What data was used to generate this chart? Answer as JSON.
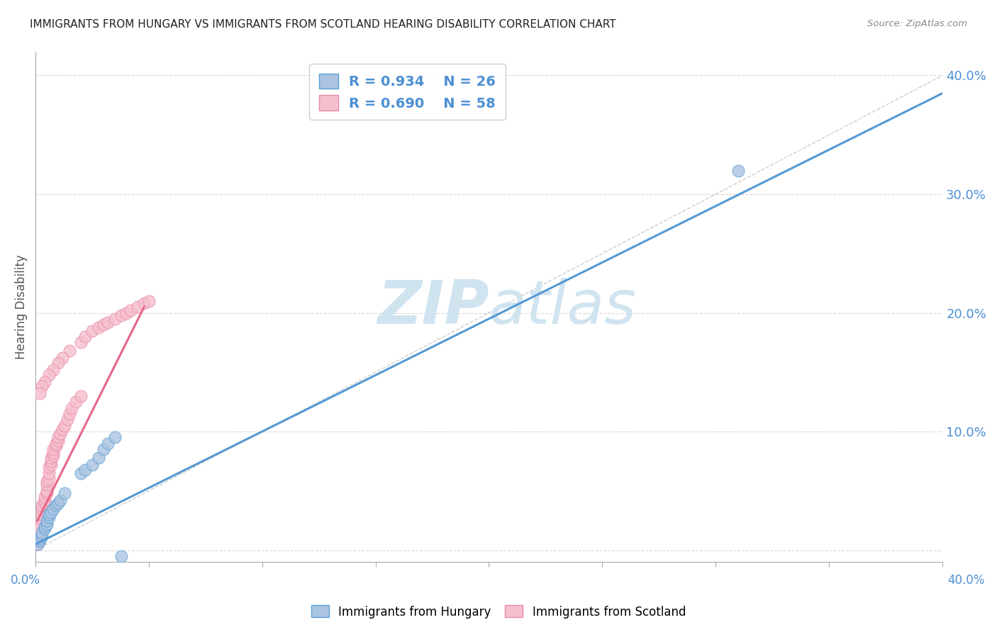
{
  "title": "IMMIGRANTS FROM HUNGARY VS IMMIGRANTS FROM SCOTLAND HEARING DISABILITY CORRELATION CHART",
  "source": "Source: ZipAtlas.com",
  "ylabel": "Hearing Disability",
  "xlim": [
    0.0,
    0.4
  ],
  "ylim": [
    -0.01,
    0.42
  ],
  "legend_R_hungary": "R = 0.934",
  "legend_N_hungary": "N = 26",
  "legend_R_scotland": "R = 0.690",
  "legend_N_scotland": "N = 58",
  "hungary_color": "#aac4e2",
  "hungary_edge": "#5a9fd4",
  "scotland_color": "#f5bfcc",
  "scotland_edge": "#e888a8",
  "hungary_line_color": "#5599d4",
  "scotland_line_color": "#e86688",
  "watermark_color": "#d0e4f0",
  "background_color": "#ffffff",
  "grid_color": "#cccccc",
  "hungary_x": [
    0.001,
    0.002,
    0.002,
    0.003,
    0.003,
    0.004,
    0.004,
    0.005,
    0.005,
    0.006,
    0.006,
    0.007,
    0.008,
    0.009,
    0.01,
    0.011,
    0.013,
    0.02,
    0.022,
    0.025,
    0.028,
    0.03,
    0.032,
    0.035,
    0.31,
    0.038
  ],
  "hungary_y": [
    0.005,
    0.008,
    0.01,
    0.012,
    0.015,
    0.018,
    0.02,
    0.022,
    0.025,
    0.028,
    0.03,
    0.032,
    0.035,
    0.038,
    0.04,
    0.042,
    0.048,
    0.065,
    0.068,
    0.072,
    0.078,
    0.085,
    0.09,
    0.095,
    0.32,
    -0.005
  ],
  "scotland_x": [
    0.001,
    0.001,
    0.002,
    0.002,
    0.002,
    0.003,
    0.003,
    0.003,
    0.003,
    0.004,
    0.004,
    0.004,
    0.005,
    0.005,
    0.005,
    0.005,
    0.006,
    0.006,
    0.006,
    0.007,
    0.007,
    0.007,
    0.008,
    0.008,
    0.008,
    0.009,
    0.009,
    0.01,
    0.01,
    0.011,
    0.012,
    0.013,
    0.014,
    0.015,
    0.016,
    0.018,
    0.02,
    0.02,
    0.022,
    0.025,
    0.028,
    0.03,
    0.032,
    0.035,
    0.038,
    0.04,
    0.042,
    0.045,
    0.048,
    0.05,
    0.015,
    0.012,
    0.01,
    0.008,
    0.006,
    0.004,
    0.003,
    0.002
  ],
  "scotland_y": [
    0.005,
    0.008,
    0.01,
    0.015,
    0.02,
    0.025,
    0.03,
    0.035,
    0.038,
    0.04,
    0.042,
    0.045,
    0.048,
    0.05,
    0.055,
    0.058,
    0.06,
    0.065,
    0.07,
    0.072,
    0.075,
    0.078,
    0.08,
    0.082,
    0.085,
    0.088,
    0.09,
    0.092,
    0.095,
    0.098,
    0.102,
    0.105,
    0.11,
    0.115,
    0.12,
    0.125,
    0.13,
    0.175,
    0.18,
    0.185,
    0.188,
    0.19,
    0.192,
    0.195,
    0.198,
    0.2,
    0.202,
    0.205,
    0.208,
    0.21,
    0.168,
    0.162,
    0.158,
    0.152,
    0.148,
    0.142,
    0.138,
    0.132
  ],
  "hungary_line_x": [
    0.0,
    0.4
  ],
  "hungary_line_y": [
    0.005,
    0.385
  ],
  "scotland_line_x": [
    0.001,
    0.048
  ],
  "scotland_line_y": [
    0.025,
    0.205
  ],
  "yticks": [
    0.0,
    0.1,
    0.2,
    0.3,
    0.4
  ],
  "ytick_labels": [
    "",
    "10.0%",
    "20.0%",
    "30.0%",
    "40.0%"
  ],
  "xtick_positions": [
    0.0,
    0.05,
    0.1,
    0.15,
    0.2,
    0.25,
    0.3,
    0.35,
    0.4
  ]
}
